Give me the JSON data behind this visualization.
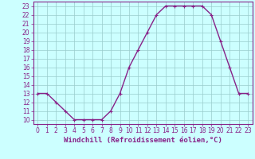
{
  "x": [
    0,
    1,
    2,
    3,
    4,
    5,
    6,
    7,
    8,
    9,
    10,
    11,
    12,
    13,
    14,
    15,
    16,
    17,
    18,
    19,
    20,
    21,
    22,
    23
  ],
  "y": [
    13,
    13,
    12,
    11,
    10,
    10,
    10,
    10,
    11,
    13,
    16,
    18,
    20,
    22,
    23,
    23,
    23,
    23,
    23,
    22,
    19,
    16,
    13,
    13
  ],
  "xlim_min": -0.5,
  "xlim_max": 23.5,
  "ylim_min": 9.5,
  "ylim_max": 23.5,
  "xticks": [
    0,
    1,
    2,
    3,
    4,
    5,
    6,
    7,
    8,
    9,
    10,
    11,
    12,
    13,
    14,
    15,
    16,
    17,
    18,
    19,
    20,
    21,
    22,
    23
  ],
  "yticks": [
    10,
    11,
    12,
    13,
    14,
    15,
    16,
    17,
    18,
    19,
    20,
    21,
    22,
    23
  ],
  "xlabel": "Windchill (Refroidissement éolien,°C)",
  "line_color": "#882288",
  "bg_color": "#ccffff",
  "grid_color": "#99cccc",
  "tick_label_color": "#882288",
  "xlabel_color": "#882288",
  "axis_line_color": "#882288",
  "markersize": 2.5,
  "linewidth": 1.0,
  "xlabel_fontsize": 6.5,
  "tick_fontsize": 5.5
}
